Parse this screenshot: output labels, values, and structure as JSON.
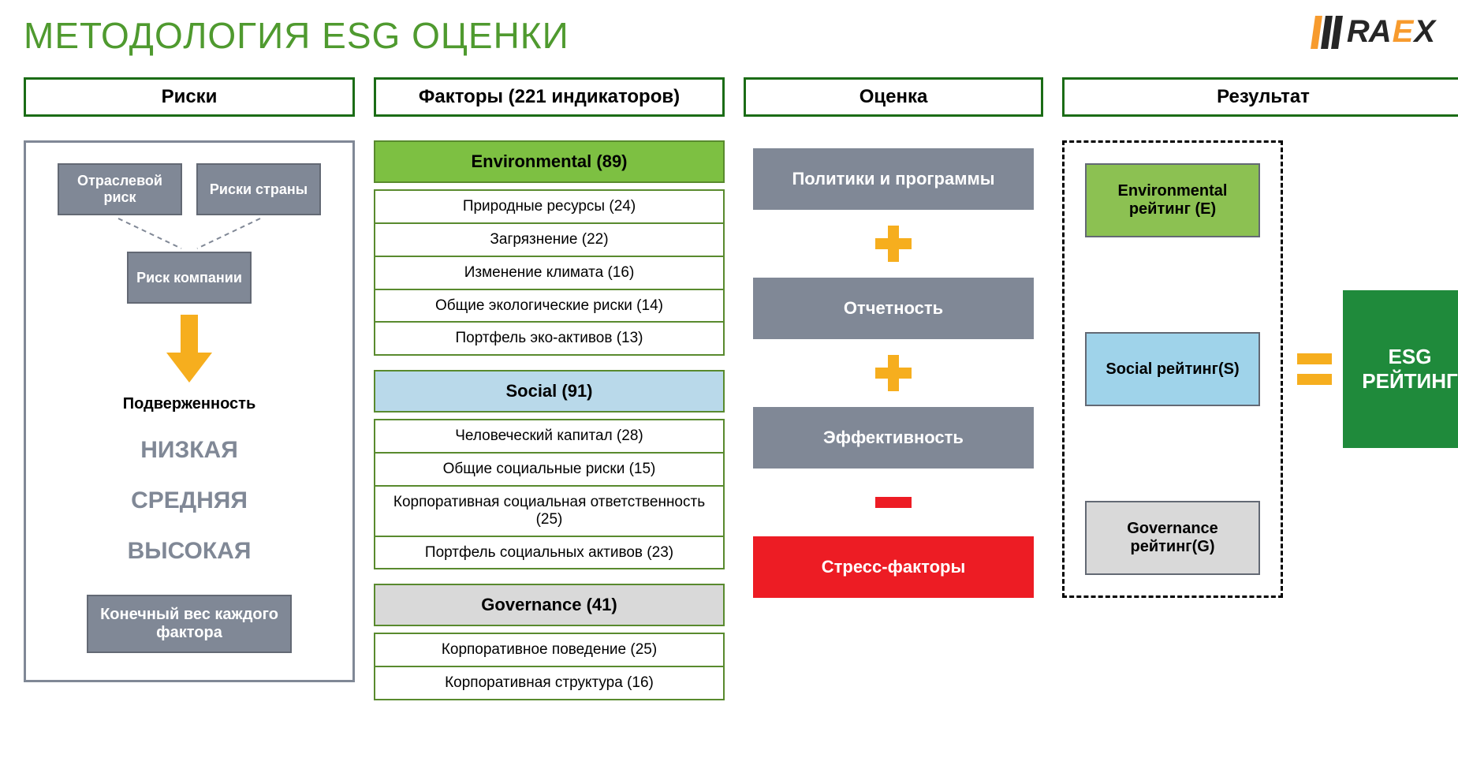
{
  "title": {
    "text": "МЕТОДОЛОГИЯ  ESG ОЦЕНКИ",
    "color": "#4f9a2f"
  },
  "logo": {
    "text_ra": "RA",
    "text_e": "E",
    "text_x": "X",
    "color_dark": "#262626",
    "color_accent": "#f79b2e",
    "bar_colors": [
      "#f79b2e",
      "#262626",
      "#262626"
    ]
  },
  "columns": {
    "risks": {
      "title": "Риски",
      "border": "#1b6c16"
    },
    "factors": {
      "title": "Факторы (221 индикаторов)",
      "border": "#1b6c16"
    },
    "evaluation": {
      "title": "Оценка",
      "border": "#1b6c16"
    },
    "result": {
      "title": "Результат",
      "border": "#1b6c16"
    }
  },
  "risks": {
    "box_bg": "#808896",
    "box_border": "#636974",
    "industry": "Отраслевой риск",
    "country": "Риски страны",
    "company": "Риск компании",
    "arrow_color": "#f6ae1e",
    "exposure_label": "Подверженность",
    "levels": [
      "НИЗКАЯ",
      "СРЕДНЯЯ",
      "ВЫСОКАЯ"
    ],
    "level_color": "#808896",
    "final_weight": "Конечный вес каждого фактора"
  },
  "factors": {
    "item_border": "#598a2e",
    "sections": [
      {
        "header": "Environmental (89)",
        "bg": "#7dc042",
        "items": [
          "Природные ресурсы (24)",
          "Загрязнение (22)",
          "Изменение климата (16)",
          "Общие экологические риски (14)",
          "Портфель  эко-активов (13)"
        ]
      },
      {
        "header": "Social (91)",
        "bg": "#b9d9ea",
        "items": [
          "Человеческий капитал (28)",
          "Общие социальные риски (15)",
          "Корпоративная социальная ответственность (25)",
          "Портфель социальных активов (23)"
        ]
      },
      {
        "header": "Governance (41)",
        "bg": "#d9d9d9",
        "items": [
          "Корпоративное поведение (25)",
          "Корпоративная структура (16)"
        ]
      }
    ]
  },
  "evaluation": {
    "boxes": [
      {
        "label": "Политики и программы",
        "bg": "#808896"
      },
      {
        "label": "Отчетность",
        "bg": "#808896"
      },
      {
        "label": "Эффективность",
        "bg": "#808896"
      },
      {
        "label": "Стресс-факторы",
        "bg": "#ed1c24"
      }
    ],
    "ops": [
      {
        "type": "plus",
        "color": "#f6ae1e"
      },
      {
        "type": "plus",
        "color": "#f6ae1e"
      },
      {
        "type": "minus",
        "color": "#ed1c24"
      }
    ]
  },
  "result": {
    "ratings": [
      {
        "label": "Environmental рейтинг (E)",
        "bg": "#8cc152"
      },
      {
        "label": "Social рейтинг(S)",
        "bg": "#9fd3ea"
      },
      {
        "label": "Governance рейтинг(G)",
        "bg": "#d9d9d9"
      }
    ],
    "equals_color": "#f6ae1e",
    "final": {
      "label": "ESG РЕЙТИНГ",
      "bg": "#1f8a3b"
    }
  }
}
